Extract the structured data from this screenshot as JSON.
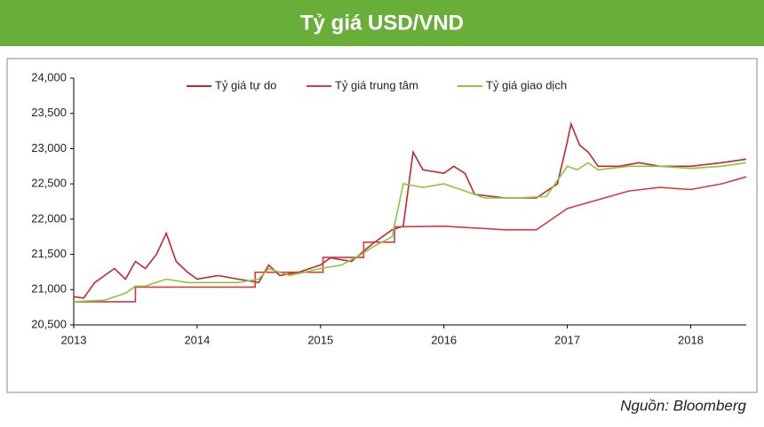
{
  "header": {
    "title": "Tỷ giá USD/VND"
  },
  "chart_data": {
    "type": "line",
    "xlim": [
      2013,
      2018.45
    ],
    "xticks": [
      2013,
      2014,
      2015,
      2016,
      2017,
      2018
    ],
    "ylim": [
      20500,
      24000
    ],
    "yticks": [
      {
        "value": 20500,
        "label": "20,500"
      },
      {
        "value": 21000,
        "label": "21,000"
      },
      {
        "value": 21500,
        "label": "21,500"
      },
      {
        "value": 22000,
        "label": "22,000"
      },
      {
        "value": 22500,
        "label": "22,500"
      },
      {
        "value": 23000,
        "label": "23,000"
      },
      {
        "value": 23500,
        "label": "23,500"
      },
      {
        "value": 24000,
        "label": "24,000"
      }
    ],
    "series": [
      {
        "name": "Tỷ giá tự do",
        "color": "#c1272d",
        "x": [
          2013.0,
          2013.08,
          2013.17,
          2013.33,
          2013.42,
          2013.5,
          2013.58,
          2013.67,
          2013.75,
          2013.83,
          2013.92,
          2014.0,
          2014.17,
          2014.33,
          2014.5,
          2014.58,
          2014.67,
          2014.83,
          2015.0,
          2015.08,
          2015.25,
          2015.42,
          2015.58,
          2015.67,
          2015.75,
          2015.83,
          2016.0,
          2016.08,
          2016.17,
          2016.25,
          2016.5,
          2016.75,
          2016.92,
          2017.0,
          2017.03,
          2017.1,
          2017.17,
          2017.25,
          2017.42,
          2017.58,
          2017.75,
          2018.0,
          2018.25,
          2018.45
        ],
        "values": [
          20900,
          20880,
          21100,
          21300,
          21150,
          21400,
          21300,
          21500,
          21800,
          21400,
          21250,
          21150,
          21200,
          21150,
          21100,
          21350,
          21200,
          21250,
          21350,
          21450,
          21400,
          21650,
          21850,
          21900,
          22950,
          22700,
          22650,
          22750,
          22650,
          22350,
          22300,
          22300,
          22500,
          23100,
          23350,
          23050,
          22950,
          22750,
          22750,
          22800,
          22750,
          22750,
          22800,
          22850
        ]
      },
      {
        "name": "Tỷ giá trung tâm",
        "color": "#d93a3f",
        "x": [
          2013.0,
          2013.5,
          2013.5,
          2014.47,
          2014.47,
          2015.02,
          2015.02,
          2015.35,
          2015.35,
          2015.6,
          2015.6,
          2016.0,
          2016.5,
          2016.75,
          2017.0,
          2017.5,
          2017.75,
          2018.0,
          2018.25,
          2018.45
        ],
        "values": [
          20828,
          20828,
          21036,
          21036,
          21246,
          21246,
          21458,
          21458,
          21673,
          21673,
          21890,
          21900,
          21850,
          21850,
          22150,
          22400,
          22450,
          22420,
          22500,
          22600
        ]
      },
      {
        "name": "Tỷ giá giao dịch",
        "color": "#8cc63f",
        "x": [
          2013.0,
          2013.25,
          2013.42,
          2013.5,
          2013.58,
          2013.75,
          2013.92,
          2014.0,
          2014.33,
          2014.5,
          2014.58,
          2014.75,
          2015.0,
          2015.17,
          2015.33,
          2015.42,
          2015.58,
          2015.67,
          2015.83,
          2016.0,
          2016.17,
          2016.33,
          2016.58,
          2016.83,
          2016.92,
          2017.0,
          2017.08,
          2017.17,
          2017.25,
          2017.5,
          2017.75,
          2018.0,
          2018.25,
          2018.45
        ],
        "values": [
          20830,
          20850,
          20950,
          21050,
          21050,
          21150,
          21100,
          21100,
          21100,
          21150,
          21300,
          21200,
          21300,
          21350,
          21500,
          21600,
          21750,
          22500,
          22450,
          22500,
          22400,
          22300,
          22300,
          22320,
          22550,
          22750,
          22700,
          22800,
          22700,
          22750,
          22750,
          22720,
          22750,
          22800
        ]
      }
    ],
    "source": "Nguồn: Bloomberg"
  }
}
